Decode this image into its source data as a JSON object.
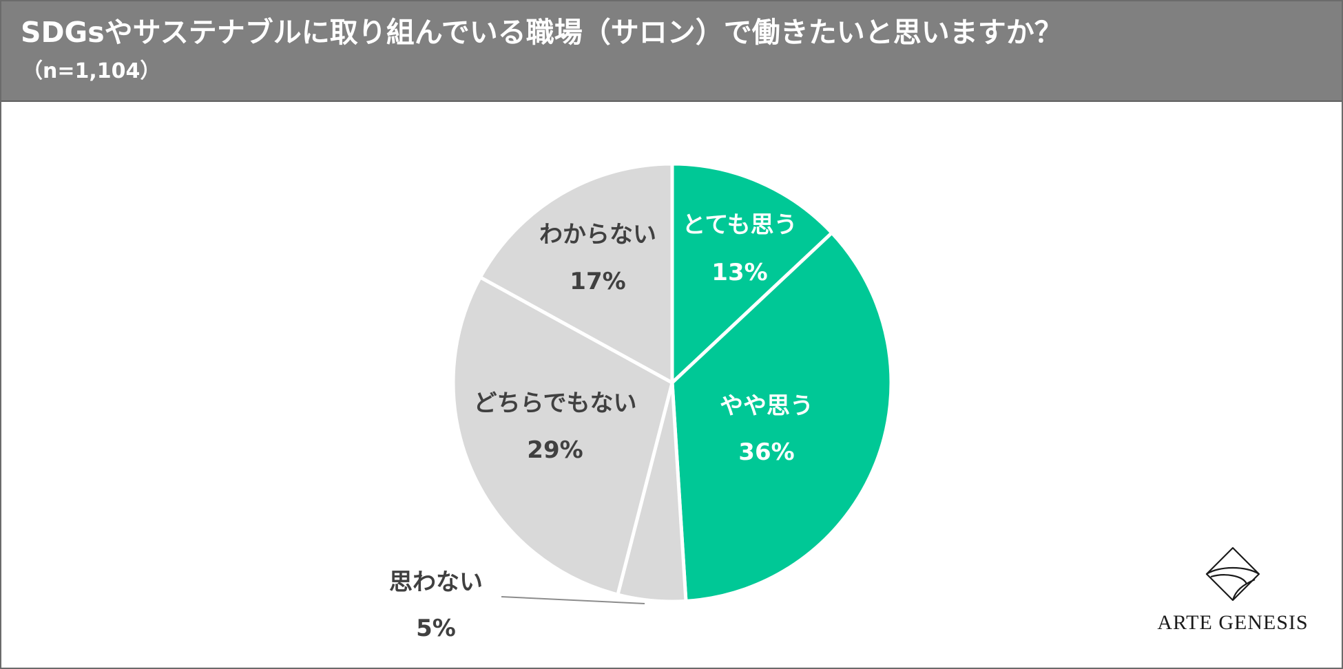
{
  "header": {
    "title": "SDGsやサステナブルに取り組んでいる職場（サロン）で働きたいと思いますか？",
    "subtitle": "（n=1,104）"
  },
  "chart_data": {
    "type": "pie",
    "start_angle_deg": 0,
    "direction": "clockwise",
    "slices": [
      {
        "label": "とても思う",
        "value": 13,
        "value_label": "13%",
        "color": "#00C896",
        "text_color": "#ffffff"
      },
      {
        "label": "やや思う",
        "value": 36,
        "value_label": "36%",
        "color": "#00C896",
        "text_color": "#ffffff"
      },
      {
        "label": "思わない",
        "value": 5,
        "value_label": "5%",
        "color": "#D9D9D9",
        "text_color": "#404040",
        "leader_line": true
      },
      {
        "label": "どちらでもない",
        "value": 29,
        "value_label": "29%",
        "color": "#D9D9D9",
        "text_color": "#404040"
      },
      {
        "label": "わからない",
        "value": 17,
        "value_label": "17%",
        "color": "#D9D9D9",
        "text_color": "#404040"
      }
    ]
  },
  "logo": {
    "text": "ARTE GENESIS",
    "icon": "arte-genesis-logo-icon"
  },
  "colors": {
    "header_bg": "#808080",
    "accent_green": "#00C896",
    "neutral_gray": "#D9D9D9",
    "dark_text": "#404040"
  }
}
